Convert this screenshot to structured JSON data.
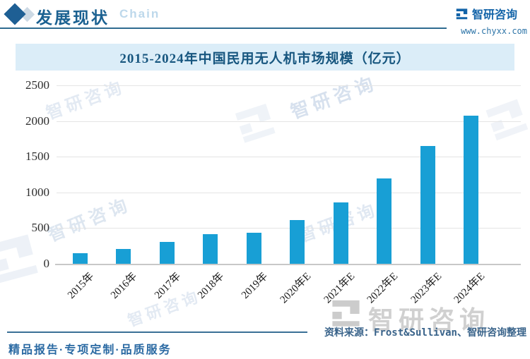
{
  "header": {
    "title": "发展现状",
    "watermark_chain": "Chain",
    "brand": {
      "name": "智研咨询",
      "url": "www.chyxx.com"
    }
  },
  "chart_data": {
    "type": "bar",
    "title": "2015-2024年中国民用无人机市场规模（亿元）",
    "categories": [
      "2015年",
      "2016年",
      "2017年",
      "2018年",
      "2019年",
      "2020年E",
      "2021年E",
      "2022年E",
      "2023年E",
      "2024年E"
    ],
    "values": [
      150,
      205,
      305,
      415,
      435,
      610,
      860,
      1200,
      1650,
      2080
    ],
    "ylabel": "",
    "xlabel": "",
    "ylim": [
      0,
      2500
    ],
    "yticks": [
      0,
      500,
      1000,
      1500,
      2000,
      2500
    ],
    "grid": true,
    "legend_position": "none",
    "bar_color": "#189fd5"
  },
  "source_note": "资料来源：Frost&Sullivan、智研咨询整理",
  "footer": {
    "slogan": "精品报告·专项定制·品质服务"
  },
  "watermark": {
    "brand_text": "智研咨询"
  }
}
